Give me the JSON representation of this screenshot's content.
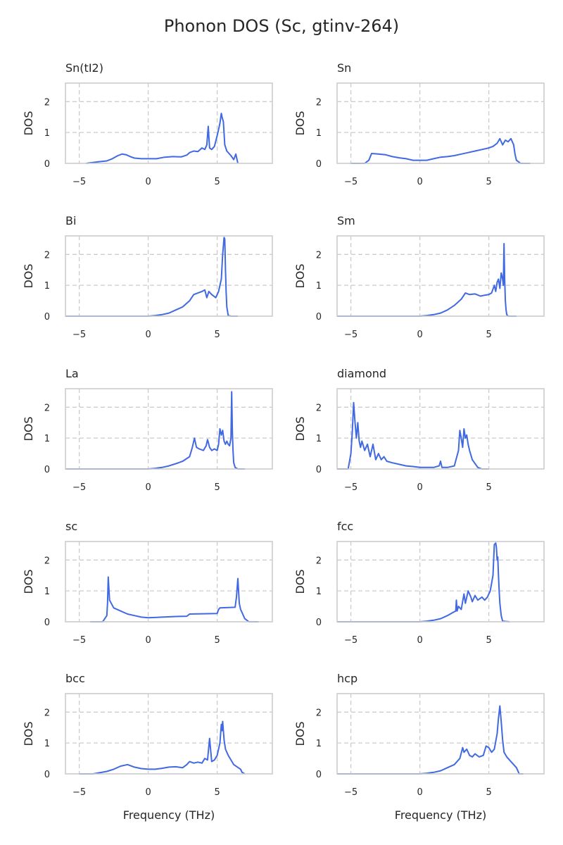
{
  "colors": {
    "line": "#4169e1",
    "grid": "#cccccc",
    "text": "#262626"
  },
  "chart_data": {
    "type": "line",
    "title": "Phonon DOS (Sc, gtinv-264)",
    "xlabel": "Frequency (THz)",
    "ylabel": "DOS",
    "xlim": [
      -6,
      9
    ],
    "ylim": [
      0,
      2.6
    ],
    "xticks": [
      -5,
      0,
      5
    ],
    "yticks": [
      0,
      1,
      2
    ],
    "xtick_labels": [
      "−5",
      "0",
      "5"
    ],
    "ytick_labels": [
      "0",
      "1",
      "2"
    ],
    "grid": true,
    "panels": [
      {
        "title": "Sn(tI2)",
        "x": [
          -4.5,
          -3.6,
          -3.0,
          -2.6,
          -2.2,
          -1.9,
          -1.6,
          -1.3,
          -1.0,
          -0.5,
          0,
          0.6,
          1.2,
          1.8,
          2.4,
          2.8,
          3.0,
          3.3,
          3.6,
          3.9,
          4.1,
          4.25,
          4.35,
          4.45,
          4.6,
          4.8,
          5.0,
          5.1,
          5.2,
          5.3,
          5.35,
          5.45,
          5.55,
          5.7,
          6.0,
          6.2,
          6.35,
          6.5
        ],
        "y": [
          0.0,
          0.05,
          0.08,
          0.15,
          0.25,
          0.3,
          0.28,
          0.22,
          0.17,
          0.15,
          0.15,
          0.15,
          0.2,
          0.22,
          0.21,
          0.27,
          0.35,
          0.4,
          0.38,
          0.5,
          0.45,
          0.6,
          1.2,
          0.5,
          0.45,
          0.55,
          0.9,
          1.1,
          1.3,
          1.62,
          1.5,
          1.35,
          0.6,
          0.4,
          0.25,
          0.12,
          0.3,
          0.0
        ]
      },
      {
        "title": "Sn",
        "x": [
          -5.0,
          -4.0,
          -3.7,
          -3.5,
          -3.0,
          -2.5,
          -2.0,
          -1.5,
          -1.0,
          -0.5,
          0,
          0.5,
          1.0,
          1.5,
          2.0,
          2.5,
          3.0,
          3.5,
          4.0,
          4.5,
          5.0,
          5.3,
          5.6,
          5.8,
          6.0,
          6.2,
          6.4,
          6.6,
          6.8,
          6.9,
          7.0,
          7.3,
          8.0
        ],
        "y": [
          0.0,
          0.0,
          0.1,
          0.32,
          0.3,
          0.28,
          0.22,
          0.18,
          0.15,
          0.1,
          0.1,
          0.1,
          0.15,
          0.2,
          0.22,
          0.25,
          0.3,
          0.35,
          0.4,
          0.45,
          0.5,
          0.55,
          0.65,
          0.8,
          0.6,
          0.75,
          0.7,
          0.8,
          0.6,
          0.3,
          0.1,
          0.0,
          0.0
        ]
      },
      {
        "title": "Bi",
        "x": [
          -6.0,
          -0.2,
          0,
          0.5,
          1.0,
          1.5,
          2.0,
          2.5,
          3.0,
          3.3,
          3.6,
          3.9,
          4.1,
          4.25,
          4.4,
          4.6,
          4.9,
          5.1,
          5.3,
          5.4,
          5.5,
          5.55,
          5.6,
          5.65,
          5.7,
          5.8,
          6.0,
          6.5
        ],
        "y": [
          0.0,
          0.0,
          0.0,
          0.02,
          0.05,
          0.1,
          0.2,
          0.3,
          0.5,
          0.7,
          0.75,
          0.8,
          0.85,
          0.6,
          0.8,
          0.7,
          0.6,
          0.8,
          1.2,
          2.0,
          2.55,
          2.5,
          1.5,
          0.8,
          0.3,
          0.02,
          0.0,
          0.0
        ]
      },
      {
        "title": "Sm",
        "x": [
          -6.0,
          -0.2,
          0,
          0.5,
          1.0,
          1.5,
          2.0,
          2.5,
          3.0,
          3.3,
          3.6,
          4.0,
          4.4,
          4.7,
          5.0,
          5.2,
          5.4,
          5.5,
          5.6,
          5.7,
          5.8,
          5.9,
          6.0,
          6.05,
          6.1,
          6.15,
          6.2,
          6.25,
          6.3,
          6.4,
          7.0
        ],
        "y": [
          0.0,
          0.0,
          0.0,
          0.02,
          0.05,
          0.1,
          0.2,
          0.35,
          0.55,
          0.75,
          0.7,
          0.72,
          0.65,
          0.68,
          0.7,
          0.75,
          1.0,
          0.8,
          1.1,
          1.2,
          0.9,
          1.4,
          1.2,
          1.0,
          2.35,
          1.2,
          0.5,
          0.2,
          0.05,
          0.0,
          0.0
        ]
      },
      {
        "title": "La",
        "x": [
          -6.0,
          -0.2,
          0,
          0.5,
          1.0,
          1.5,
          2.0,
          2.5,
          3.0,
          3.2,
          3.35,
          3.5,
          3.7,
          4.0,
          4.2,
          4.3,
          4.45,
          4.6,
          4.8,
          5.0,
          5.1,
          5.2,
          5.3,
          5.4,
          5.5,
          5.6,
          5.7,
          5.8,
          5.9,
          6.0,
          6.05,
          6.1,
          6.15,
          6.2,
          6.3,
          6.5,
          7.0
        ],
        "y": [
          0.0,
          0.0,
          0.0,
          0.02,
          0.05,
          0.1,
          0.17,
          0.25,
          0.4,
          0.7,
          1.0,
          0.7,
          0.65,
          0.6,
          0.75,
          0.95,
          0.7,
          0.6,
          0.65,
          0.6,
          0.8,
          1.3,
          1.1,
          1.25,
          0.9,
          0.8,
          0.9,
          0.8,
          0.75,
          1.0,
          2.5,
          1.2,
          0.6,
          0.2,
          0.05,
          0.0,
          0.0
        ]
      },
      {
        "title": "diamond",
        "x": [
          -6.0,
          -5.2,
          -5.0,
          -4.9,
          -4.8,
          -4.7,
          -4.6,
          -4.5,
          -4.4,
          -4.3,
          -4.2,
          -4.0,
          -3.8,
          -3.6,
          -3.4,
          -3.2,
          -3.0,
          -2.8,
          -2.6,
          -2.4,
          -2.0,
          -1.5,
          -1.0,
          -0.5,
          0,
          0.5,
          1.0,
          1.4,
          1.5,
          1.6,
          2.0,
          2.5,
          2.8,
          2.9,
          3.0,
          3.1,
          3.2,
          3.3,
          3.4,
          3.5,
          3.6,
          3.8,
          4.2,
          4.5,
          5.0
        ],
        "y": [
          0.0,
          0.0,
          0.5,
          1.2,
          2.15,
          1.5,
          1.0,
          1.5,
          0.9,
          0.7,
          0.9,
          0.6,
          0.8,
          0.4,
          0.8,
          0.3,
          0.5,
          0.3,
          0.4,
          0.25,
          0.2,
          0.15,
          0.1,
          0.08,
          0.05,
          0.05,
          0.05,
          0.1,
          0.25,
          0.05,
          0.05,
          0.1,
          0.6,
          1.25,
          1.0,
          0.7,
          1.3,
          1.0,
          1.1,
          0.8,
          0.6,
          0.3,
          0.05,
          0.0,
          0.0
        ]
      },
      {
        "title": "sc",
        "x": [
          -4.2,
          -3.3,
          -3.0,
          -2.95,
          -2.9,
          -2.8,
          -2.5,
          -2.0,
          -1.5,
          -1.0,
          -0.5,
          0,
          0.5,
          1.0,
          2.0,
          2.8,
          3.0,
          4.0,
          5.0,
          5.1,
          5.2,
          6.3,
          6.4,
          6.5,
          6.6,
          6.7,
          6.8,
          7.0,
          7.3,
          8.0
        ],
        "y": [
          0.0,
          0.0,
          0.2,
          0.6,
          1.45,
          0.7,
          0.45,
          0.35,
          0.25,
          0.2,
          0.15,
          0.13,
          0.14,
          0.15,
          0.17,
          0.18,
          0.25,
          0.26,
          0.27,
          0.4,
          0.45,
          0.47,
          0.8,
          1.4,
          0.6,
          0.4,
          0.3,
          0.1,
          0.0,
          0.0
        ]
      },
      {
        "title": "fcc",
        "x": [
          -6.0,
          -0.2,
          0,
          0.5,
          1.0,
          1.5,
          2.0,
          2.4,
          2.6,
          2.65,
          2.7,
          2.8,
          3.0,
          3.2,
          3.3,
          3.5,
          3.7,
          3.8,
          4.0,
          4.2,
          4.5,
          4.7,
          4.9,
          5.1,
          5.3,
          5.4,
          5.5,
          5.55,
          5.6,
          5.65,
          5.7,
          5.75,
          5.8,
          5.9,
          6.0,
          6.5
        ],
        "y": [
          0.0,
          0.0,
          0.0,
          0.02,
          0.05,
          0.1,
          0.2,
          0.3,
          0.35,
          0.7,
          0.35,
          0.5,
          0.4,
          0.9,
          0.6,
          1.0,
          0.8,
          0.65,
          0.85,
          0.7,
          0.8,
          0.7,
          0.8,
          1.0,
          1.5,
          2.5,
          2.55,
          2.4,
          2.0,
          2.1,
          1.5,
          1.0,
          0.6,
          0.2,
          0.02,
          0.0
        ]
      },
      {
        "title": "bcc",
        "x": [
          -5.0,
          -4.0,
          -3.0,
          -2.5,
          -2.0,
          -1.5,
          -1.0,
          -0.5,
          0,
          0.5,
          1.0,
          1.5,
          2.0,
          2.5,
          2.8,
          3.0,
          3.3,
          3.6,
          3.9,
          4.1,
          4.3,
          4.45,
          4.6,
          4.8,
          5.0,
          5.2,
          5.3,
          5.35,
          5.4,
          5.5,
          5.6,
          5.8,
          6.2,
          6.7,
          6.8,
          7.0
        ],
        "y": [
          0.0,
          0.0,
          0.08,
          0.15,
          0.25,
          0.3,
          0.22,
          0.17,
          0.15,
          0.15,
          0.18,
          0.22,
          0.23,
          0.2,
          0.3,
          0.4,
          0.35,
          0.38,
          0.35,
          0.5,
          0.45,
          1.15,
          0.4,
          0.45,
          0.6,
          1.0,
          1.6,
          1.4,
          1.7,
          1.1,
          0.8,
          0.6,
          0.3,
          0.15,
          0.05,
          0.0
        ]
      },
      {
        "title": "hcp",
        "x": [
          -6.0,
          -0.2,
          0,
          0.5,
          1.0,
          1.5,
          2.0,
          2.5,
          2.9,
          3.1,
          3.2,
          3.4,
          3.6,
          3.8,
          4.0,
          4.3,
          4.6,
          4.8,
          5.0,
          5.2,
          5.4,
          5.6,
          5.7,
          5.8,
          5.9,
          6.0,
          6.1,
          6.3,
          6.5,
          6.8,
          7.0,
          7.1,
          7.2,
          7.5
        ],
        "y": [
          0.0,
          0.0,
          0.0,
          0.02,
          0.05,
          0.1,
          0.2,
          0.3,
          0.5,
          0.85,
          0.7,
          0.8,
          0.6,
          0.55,
          0.65,
          0.55,
          0.6,
          0.9,
          0.85,
          0.7,
          0.8,
          1.3,
          1.8,
          2.2,
          1.7,
          1.1,
          0.7,
          0.55,
          0.45,
          0.3,
          0.2,
          0.1,
          0.0,
          0.0
        ]
      }
    ]
  }
}
